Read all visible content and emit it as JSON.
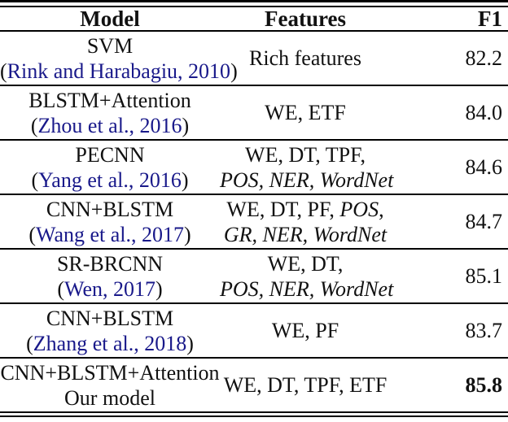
{
  "table": {
    "header": {
      "model": "Model",
      "features": "Features",
      "f1": "F1"
    },
    "citation_color": "#19198a",
    "text_color": "#111111",
    "rows": [
      {
        "model": "SVM",
        "cite_open": "(",
        "citation": "Rink and Harabagiu, 2010",
        "cite_close": ")",
        "features": [
          [
            {
              "t": "Rich features"
            }
          ]
        ],
        "f1": "82.2",
        "f1_bold": false
      },
      {
        "model": "BLSTM+Attention",
        "cite_open": "(",
        "citation": "Zhou et al., 2016",
        "cite_close": ")",
        "features": [
          [
            {
              "t": "WE, ETF"
            }
          ]
        ],
        "f1": "84.0",
        "f1_bold": false
      },
      {
        "model": "PECNN",
        "cite_open": "(",
        "citation": "Yang et al., 2016",
        "cite_close": ")",
        "features": [
          [
            {
              "t": "WE, DT, TPF,"
            }
          ],
          [
            {
              "t": "POS, NER, WordNet",
              "i": true
            }
          ]
        ],
        "f1": "84.6",
        "f1_bold": false
      },
      {
        "model": "CNN+BLSTM",
        "cite_open": "(",
        "citation": "Wang et al., 2017",
        "cite_close": ")",
        "features": [
          [
            {
              "t": "WE, DT, PF, "
            },
            {
              "t": "POS",
              "i": true
            },
            {
              "t": ","
            }
          ],
          [
            {
              "t": "GR, NER, WordNet",
              "i": true
            }
          ]
        ],
        "f1": "84.7",
        "f1_bold": false
      },
      {
        "model": "SR-BRCNN",
        "cite_open": "(",
        "citation": "Wen, 2017",
        "cite_close": ")",
        "features": [
          [
            {
              "t": "WE, DT,"
            }
          ],
          [
            {
              "t": "POS, NER, WordNet",
              "i": true
            }
          ]
        ],
        "f1": "85.1",
        "f1_bold": false
      },
      {
        "model": "CNN+BLSTM",
        "cite_open": "(",
        "citation": "Zhang et al., 2018",
        "cite_close": ")",
        "features": [
          [
            {
              "t": "WE, PF"
            }
          ]
        ],
        "f1": "83.7",
        "f1_bold": false
      },
      {
        "model": "CNN+BLSTM+Attention",
        "model_line2": "Our model",
        "features": [
          [
            {
              "t": "WE, DT, TPF, ETF"
            }
          ]
        ],
        "f1": "85.8",
        "f1_bold": true
      }
    ]
  }
}
